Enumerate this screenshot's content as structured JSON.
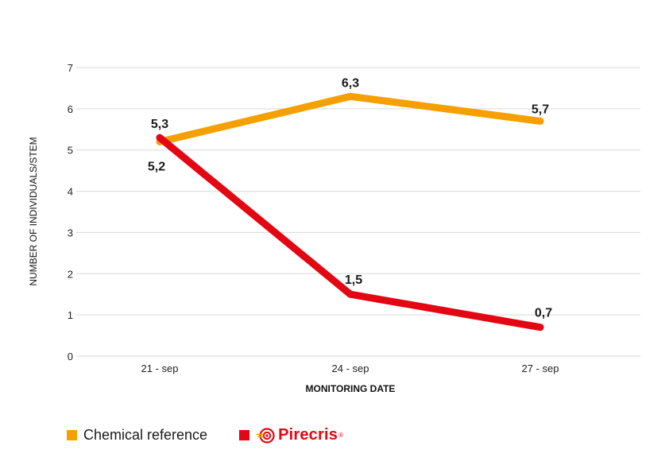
{
  "colors": {
    "chemical": "#f5a000",
    "pirecris": "#e30613",
    "grid": "#d9d9d9"
  },
  "chart_data": {
    "type": "line",
    "title": "",
    "xlabel": "MONITORING DATE",
    "ylabel": "NUMBER OF INDIVIDUALS/STEM",
    "categories": [
      "21 - sep",
      "24 - sep",
      "27 - sep"
    ],
    "ylim": [
      0,
      7
    ],
    "yticks": [
      0,
      1,
      2,
      3,
      4,
      5,
      6,
      7
    ],
    "grid": true,
    "legend_position": "bottom-left",
    "series": [
      {
        "name": "Chemical reference",
        "values": [
          5.2,
          6.3,
          5.7
        ],
        "labels": [
          "5,2",
          "6,3",
          "5,7"
        ],
        "color": "#f5a000"
      },
      {
        "name": "Pirecris",
        "values": [
          5.3,
          1.5,
          0.7
        ],
        "labels": [
          "5,3",
          "1,5",
          "0,7"
        ],
        "color": "#e30613"
      }
    ]
  },
  "legend": {
    "chemical_label": "Chemical reference",
    "pirecris_label": "Pirecris",
    "pirecris_reg": "®"
  }
}
